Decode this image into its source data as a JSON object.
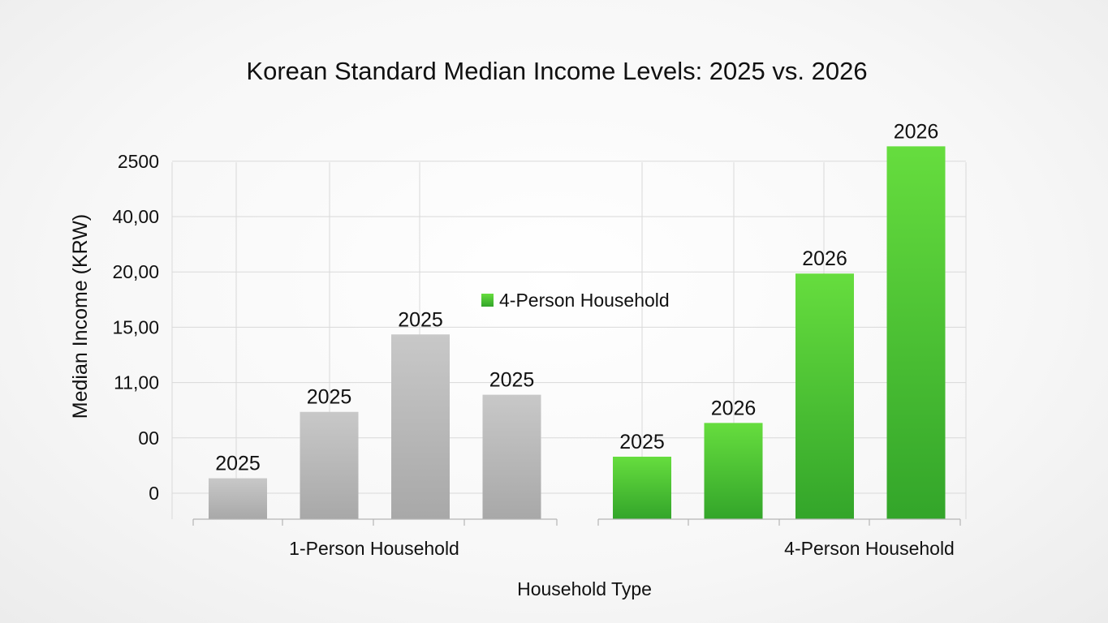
{
  "chart_data": {
    "type": "bar",
    "title": "Korean Standard Median Income Levels: 2025 vs. 2026",
    "xlabel": "Household Type",
    "ylabel": "Median Income (KRW)",
    "y_tick_labels": [
      "0",
      "00",
      "11,00",
      "15,00",
      "20,00",
      "40,00",
      "2500"
    ],
    "grid": true,
    "legend": {
      "placement": "center",
      "entries": [
        {
          "name": "4-Person Household",
          "color": "#5cd63a"
        }
      ]
    },
    "groups": [
      {
        "category": "1-Person Household",
        "color": "#b8b8b8",
        "bars": [
          {
            "label": "2025",
            "value": 0.27
          },
          {
            "label": "2025",
            "value": 1.47
          },
          {
            "label": "2025",
            "value": 2.87
          },
          {
            "label": "2025",
            "value": 1.78
          }
        ]
      },
      {
        "category": "4-Person Household",
        "color": "#4cc832",
        "bars": [
          {
            "label": "2025",
            "value": 0.66
          },
          {
            "label": "2026",
            "value": 1.27
          },
          {
            "label": "2026",
            "value": 3.97
          },
          {
            "label": "2026",
            "value": 6.27
          }
        ]
      }
    ]
  }
}
